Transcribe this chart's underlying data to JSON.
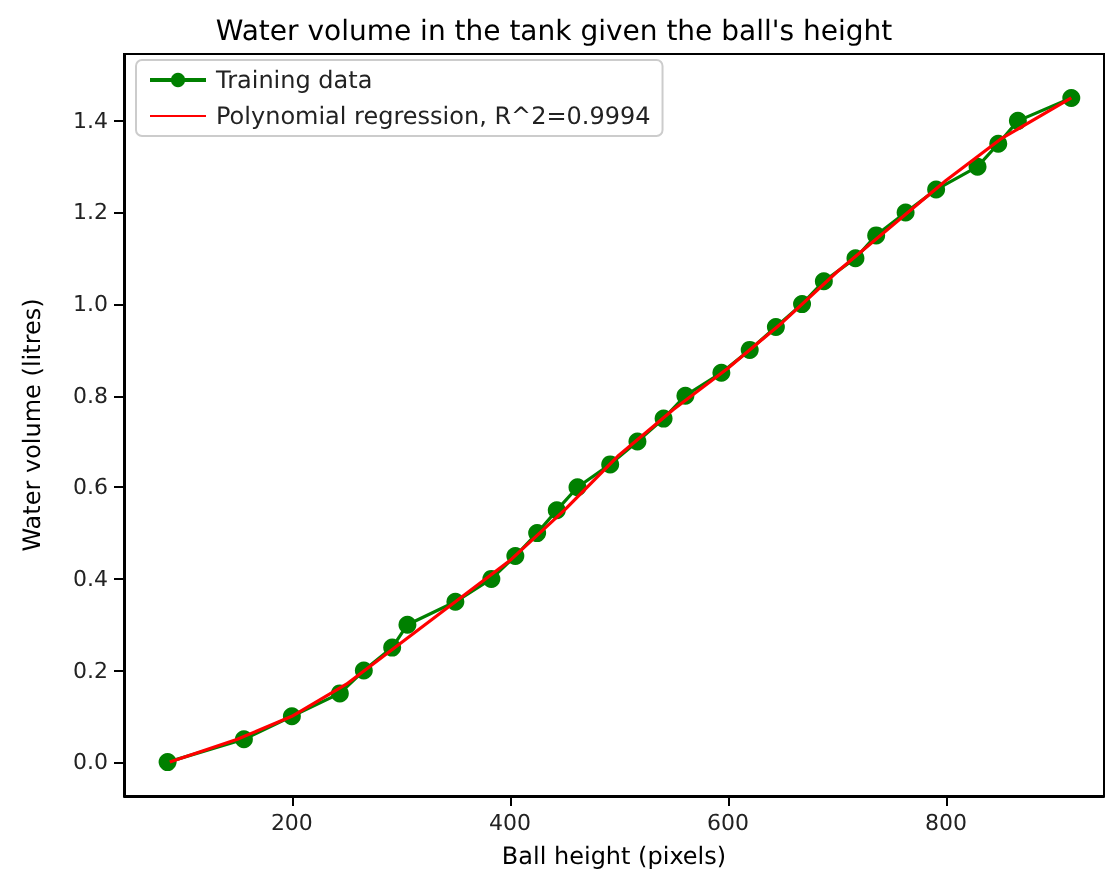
{
  "chart_data": {
    "type": "line",
    "title": "Water volume in the tank given the ball's height",
    "xlabel": "Ball height (pixels)",
    "ylabel": "Water volume (litres)",
    "xlim": [
      46,
      945
    ],
    "xticks": [
      200,
      400,
      600,
      800
    ],
    "ylim": [
      -0.074,
      1.546
    ],
    "yticks": [
      {
        "value": 0,
        "label": "0.0"
      },
      0.2,
      0.4,
      0.6,
      0.8,
      {
        "value": 1,
        "label": "1.0"
      },
      1.2,
      1.4
    ],
    "grid": false,
    "legend": "top left",
    "series": [
      {
        "name": "Training data",
        "color": "#008000",
        "marker": "circle",
        "x": [
          86,
          156,
          200,
          244,
          266,
          292,
          306,
          350,
          383,
          405,
          425,
          443,
          462,
          492,
          517,
          541,
          561,
          594,
          620,
          644,
          668,
          688,
          717,
          736,
          763,
          791,
          829,
          848,
          866,
          915
        ],
        "values": [
          0,
          0.05,
          0.1,
          0.15,
          0.2,
          0.25,
          0.3,
          0.35,
          0.4,
          0.45,
          0.5,
          0.55,
          0.6,
          0.65,
          0.7,
          0.75,
          0.8,
          0.85,
          0.9,
          0.95,
          1.0,
          1.05,
          1.1,
          1.15,
          1.2,
          1.25,
          1.3,
          1.35,
          1.4,
          1.45
        ]
      },
      {
        "name": "Polynomial regression, R^2=0.9994",
        "color": "#ff0000",
        "marker": "none",
        "x": [
          88,
          150,
          200,
          250,
          300,
          350,
          400,
          450,
          500,
          550,
          600,
          650,
          700,
          750,
          800,
          850,
          915
        ],
        "values": [
          0.0,
          0.05,
          0.1,
          0.17,
          0.26,
          0.35,
          0.44,
          0.55,
          0.67,
          0.77,
          0.86,
          0.96,
          1.07,
          1.17,
          1.27,
          1.36,
          1.45
        ]
      }
    ]
  }
}
